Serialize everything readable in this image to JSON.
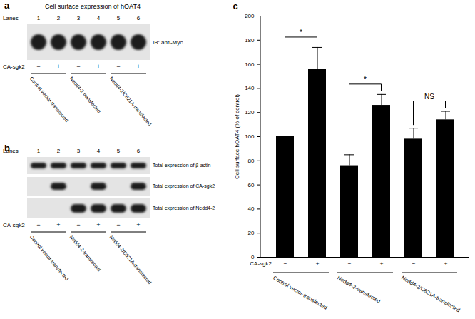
{
  "chart_data": {
    "type": "bar",
    "panel_label": "c",
    "y_label": "Cell surface hOAT4 (% of control)",
    "x_row_label": "CA-sgk2",
    "categories": [
      "−",
      "+",
      "−",
      "+",
      "−",
      "+"
    ],
    "values": [
      100,
      156,
      76,
      126,
      98,
      114
    ],
    "errors": [
      null,
      18,
      9,
      9,
      9,
      7
    ],
    "color": "#000000",
    "ylim": [
      0,
      200
    ],
    "yticks": [
      0,
      20,
      40,
      60,
      80,
      100,
      120,
      140,
      160,
      180,
      200
    ],
    "grid": false,
    "groups": [
      {
        "label": "Control vector-transfected",
        "members": [
          0,
          1
        ]
      },
      {
        "label": "Nedd4-2-transfected",
        "members": [
          2,
          3
        ]
      },
      {
        "label": "Nedd4-2/C821A-transfected",
        "members": [
          4,
          5
        ]
      }
    ],
    "comparisons": [
      {
        "members": [
          0,
          1
        ],
        "label": "*"
      },
      {
        "members": [
          2,
          3
        ],
        "label": "*"
      },
      {
        "members": [
          4,
          5
        ],
        "label": "NS"
      }
    ]
  },
  "panels": [
    {
      "panel_label": "a",
      "title": "Cell surface expression of hOAT4",
      "lanes_label": "Lanes",
      "lanes": [
        1,
        2,
        3,
        4,
        5,
        6
      ],
      "blots": [
        {
          "label": "IB: anti-Myc",
          "bands": [
            1,
            2,
            3,
            4,
            5,
            6
          ]
        }
      ],
      "row_label": "CA-sgk2",
      "signs": [
        "−",
        "+",
        "−",
        "+",
        "−",
        "+"
      ],
      "groups": [
        {
          "label": "Control vector-transfected",
          "lanes": [
            1,
            2
          ]
        },
        {
          "label": "Nedd4-2-transfected",
          "lanes": [
            3,
            4
          ]
        },
        {
          "label": "Nedd4-2/C821A-transfected",
          "lanes": [
            5,
            6
          ]
        }
      ]
    },
    {
      "panel_label": "b",
      "lanes_label": "Lanes",
      "lanes": [
        1,
        2,
        3,
        4,
        5,
        6
      ],
      "blots": [
        {
          "label": "Total expression of β-actin",
          "bands": [
            1,
            2,
            3,
            4,
            5,
            6
          ]
        },
        {
          "label": "Total expression of CA-sgk2",
          "bands": [
            2,
            4,
            6
          ]
        },
        {
          "label": "Total expression of Nedd4-2",
          "bands": [
            3,
            4,
            5,
            6
          ]
        }
      ],
      "row_label": "CA-sgk2",
      "signs": [
        "−",
        "+",
        "−",
        "+",
        "−",
        "+"
      ],
      "groups": [
        {
          "label": "Control vector-transfected",
          "lanes": [
            1,
            2
          ]
        },
        {
          "label": "Nedd4-2-transfected",
          "lanes": [
            3,
            4
          ]
        },
        {
          "label": "Nedd4-2/C821A-transfected",
          "lanes": [
            5,
            6
          ]
        }
      ]
    }
  ]
}
